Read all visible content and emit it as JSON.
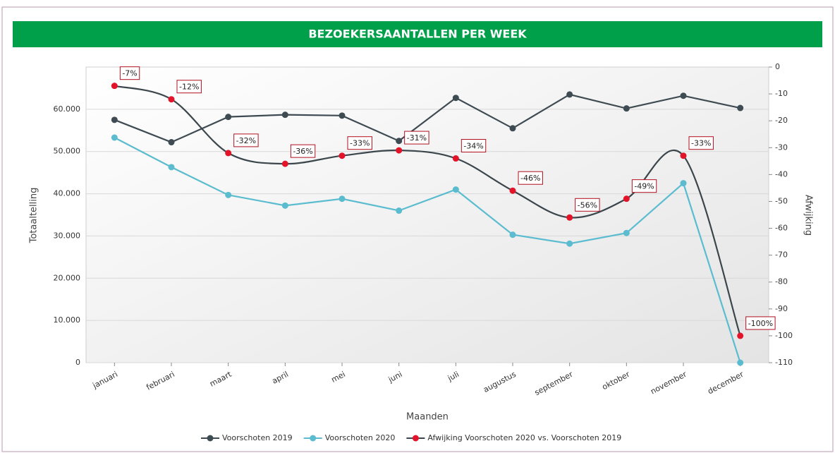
{
  "chart_data": {
    "type": "line",
    "title": "BEZOEKERSAANTALLEN PER WEEK",
    "x_label": "Maanden",
    "y_label": "Totaaltelling",
    "y2_label": "Afwijking",
    "categories": [
      "januari",
      "februari",
      "maart",
      "april",
      "mei",
      "juni",
      "juli",
      "augustus",
      "september",
      "oktober",
      "november",
      "december"
    ],
    "series": [
      {
        "name": "Voorschoten 2019",
        "color": "#3e4b52",
        "values": [
          57500,
          52200,
          58200,
          58700,
          58500,
          52500,
          62700,
          55500,
          63500,
          60200,
          63200,
          60300
        ]
      },
      {
        "name": "Voorschoten 2020",
        "color": "#5bbcd0",
        "values": [
          53300,
          46300,
          39700,
          37200,
          38800,
          36000,
          41000,
          30300,
          28200,
          30700,
          42500,
          0
        ]
      },
      {
        "name": "Afwijking Voorschoten 2020 vs. Voorschoten 2019",
        "color": "#e3142a",
        "line_color": "#3b464c",
        "smooth": true,
        "axis": "y2",
        "values": [
          -7,
          -12,
          -32,
          -36,
          -33,
          -31,
          -34,
          -46,
          -56,
          -49,
          -33,
          -100
        ],
        "value_labels": [
          "-7%",
          "-12%",
          "-32%",
          "-36%",
          "-33%",
          "-31%",
          "-34%",
          "-46%",
          "-56%",
          "-49%",
          "-33%",
          "-100%"
        ]
      }
    ],
    "ylim": [
      0,
      70000
    ],
    "yticks": [
      0,
      {
        "value": 10000,
        "label": "10.000"
      },
      {
        "value": 20000,
        "label": "20.000"
      },
      {
        "value": 30000,
        "label": "30.000"
      },
      {
        "value": 40000,
        "label": "40.000"
      },
      {
        "value": 50000,
        "label": "50.000"
      },
      {
        "value": 60000,
        "label": "60.000"
      }
    ],
    "y2lim": [
      -110,
      0
    ],
    "y2ticks": [
      0,
      -10,
      -20,
      -30,
      -40,
      -50,
      -60,
      -70,
      -80,
      -90,
      -100,
      -110
    ],
    "grid": true,
    "title_color": "#00a04a"
  }
}
